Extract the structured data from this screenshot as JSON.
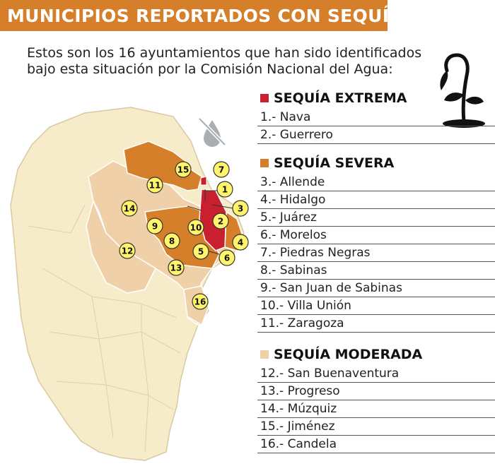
{
  "title": "MUNICIPIOS REPORTADOS CON SEQUÍA",
  "intro": {
    "line1": "Estos son los 16 ayuntamientos que han sido identificados",
    "line2": "bajo esta situación por la Comisión Nacional del Agua:"
  },
  "colors": {
    "title_bg": "#d67f2a",
    "extrema": "#c8202f",
    "severa": "#d67f2a",
    "moderada": "#f0d0a8",
    "state_base": "#f6ecc9",
    "badge": "#fff46b"
  },
  "icons": [
    "wilted-plant-icon",
    "no-water-icon"
  ],
  "legend": {
    "extrema": {
      "title": "SEQUÍA EXTREMA",
      "items": [
        "1.- Nava",
        "2.- Guerrero"
      ]
    },
    "severa": {
      "title": "SEQUÍA SEVERA",
      "items": [
        "3.- Allende",
        "4.- Hidalgo",
        "5.- Juárez",
        "6.- Morelos",
        "7.- Piedras Negras",
        "8.- Sabinas",
        "9.- San Juan de Sabinas",
        "10.- Villa Unión",
        "11.- Zaragoza"
      ]
    },
    "moderada": {
      "title": "SEQUÍA MODERADA",
      "items": [
        "12.- San Buenaventura",
        "13.- Progreso",
        "14.- Múzquiz",
        "15.- Jiménez",
        "16.- Candela"
      ]
    }
  },
  "map_markers": [
    "1",
    "2",
    "3",
    "4",
    "5",
    "6",
    "7",
    "8",
    "9",
    "10",
    "11",
    "12",
    "13",
    "14",
    "15",
    "16"
  ]
}
